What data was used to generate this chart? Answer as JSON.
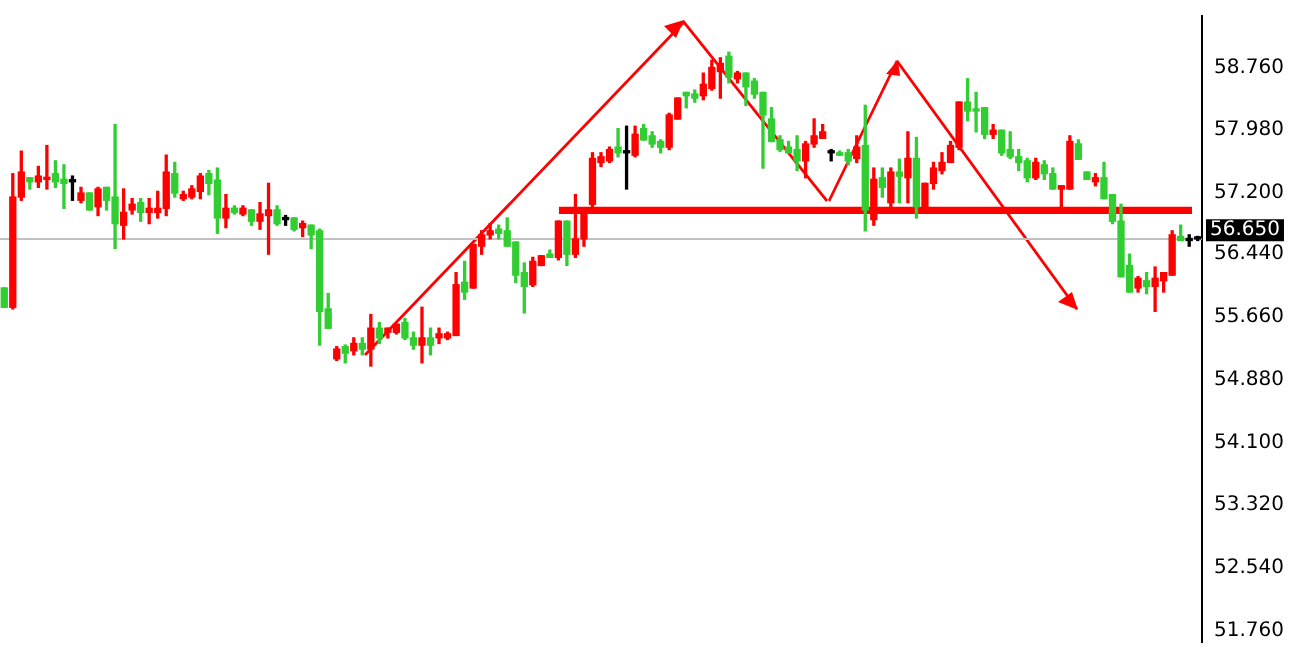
{
  "chart_data": {
    "type": "candlestick",
    "categories": [
      null,
      null,
      null,
      null,
      null,
      null,
      null,
      null,
      null,
      null,
      null,
      null,
      null,
      null,
      null,
      null,
      null,
      null,
      null,
      null,
      null,
      null,
      null,
      null,
      null,
      null,
      null,
      null,
      null,
      null,
      null,
      null,
      null,
      null,
      null,
      null,
      null,
      null,
      null,
      null,
      null,
      null,
      null,
      null,
      null,
      null,
      null,
      null,
      null,
      null,
      null,
      null,
      null,
      null,
      null,
      null,
      null,
      null,
      null,
      null,
      null,
      null,
      null,
      null,
      null,
      null,
      null,
      null,
      null,
      null,
      null,
      null,
      null,
      null,
      null,
      null,
      null,
      null,
      null,
      null,
      null,
      null,
      null,
      null,
      null,
      null,
      null,
      null,
      null,
      null,
      null,
      null,
      null,
      null,
      null,
      null,
      null,
      null,
      null,
      null,
      null,
      null,
      null,
      null,
      null,
      null,
      null,
      null,
      null,
      null,
      null,
      null,
      null,
      null,
      null,
      null,
      null,
      null,
      null,
      null,
      null,
      null,
      null,
      null,
      null,
      null,
      null,
      null,
      null,
      null,
      null,
      null,
      null,
      null,
      null,
      null,
      null,
      null,
      null,
      null,
      null
    ],
    "ohlc": [
      [
        55.78,
        56.02,
        55.78,
        56.02
      ],
      [
        57.15,
        57.44,
        55.76,
        55.78
      ],
      [
        57.46,
        57.72,
        57.11,
        57.15
      ],
      [
        57.34,
        57.39,
        57.25,
        57.39
      ],
      [
        57.41,
        57.53,
        57.27,
        57.34
      ],
      [
        57.39,
        57.79,
        57.25,
        57.37
      ],
      [
        57.34,
        57.6,
        57.27,
        57.44
      ],
      [
        57.32,
        57.55,
        57.01,
        57.37
      ],
      [
        57.34,
        57.41,
        57.11,
        57.34
      ],
      [
        57.2,
        57.27,
        57.08,
        57.11
      ],
      [
        56.99,
        57.2,
        56.99,
        57.2
      ],
      [
        57.25,
        57.27,
        56.92,
        57.03
      ],
      [
        57.11,
        57.27,
        56.99,
        57.27
      ],
      [
        56.82,
        58.05,
        56.51,
        57.15
      ],
      [
        56.96,
        57.25,
        56.63,
        56.8
      ],
      [
        57.06,
        57.13,
        56.94,
        56.99
      ],
      [
        56.96,
        57.13,
        56.85,
        57.08
      ],
      [
        57.01,
        57.13,
        56.82,
        56.96
      ],
      [
        57.01,
        57.22,
        56.89,
        56.96
      ],
      [
        57.46,
        57.67,
        56.92,
        57.01
      ],
      [
        57.2,
        57.58,
        57.15,
        57.44
      ],
      [
        57.18,
        57.22,
        57.11,
        57.13
      ],
      [
        57.25,
        57.29,
        57.13,
        57.15
      ],
      [
        57.41,
        57.44,
        57.13,
        57.22
      ],
      [
        57.32,
        57.48,
        57.18,
        57.44
      ],
      [
        56.89,
        57.51,
        56.7,
        57.36
      ],
      [
        57.01,
        57.18,
        56.77,
        56.89
      ],
      [
        56.96,
        57.04,
        56.94,
        57.01
      ],
      [
        57.01,
        57.04,
        56.92,
        56.94
      ],
      [
        56.85,
        56.99,
        56.8,
        56.99
      ],
      [
        56.94,
        57.08,
        56.75,
        56.85
      ],
      [
        56.99,
        57.32,
        56.44,
        56.92
      ],
      [
        56.82,
        57.04,
        56.8,
        56.99
      ],
      [
        56.87,
        56.92,
        56.8,
        56.87
      ],
      [
        56.75,
        56.89,
        56.73,
        56.89
      ],
      [
        56.82,
        56.85,
        56.66,
        56.77
      ],
      [
        56.68,
        56.8,
        56.51,
        56.8
      ],
      [
        55.73,
        56.75,
        55.31,
        56.73
      ],
      [
        55.52,
        55.95,
        55.52,
        55.76
      ],
      [
        55.26,
        55.29,
        55.12,
        55.14
      ],
      [
        55.21,
        55.31,
        55.09,
        55.29
      ],
      [
        55.33,
        55.4,
        55.19,
        55.24
      ],
      [
        55.26,
        55.4,
        55.19,
        55.33
      ],
      [
        55.52,
        55.69,
        55.05,
        55.26
      ],
      [
        55.4,
        55.59,
        55.33,
        55.52
      ],
      [
        55.52,
        55.52,
        55.4,
        55.47
      ],
      [
        55.57,
        55.57,
        55.45,
        55.47
      ],
      [
        55.4,
        55.64,
        55.38,
        55.59
      ],
      [
        55.31,
        55.47,
        55.26,
        55.4
      ],
      [
        55.4,
        55.78,
        55.09,
        55.31
      ],
      [
        55.31,
        55.52,
        55.19,
        55.4
      ],
      [
        55.45,
        55.52,
        55.33,
        55.4
      ],
      [
        55.45,
        55.47,
        55.38,
        55.4
      ],
      [
        56.06,
        56.21,
        55.43,
        55.43
      ],
      [
        55.97,
        56.35,
        55.88,
        56.09
      ],
      [
        56.56,
        56.56,
        56.02,
        56.02
      ],
      [
        56.68,
        56.73,
        56.44,
        56.54
      ],
      [
        56.73,
        56.82,
        56.63,
        56.68
      ],
      [
        56.7,
        56.8,
        56.63,
        56.75
      ],
      [
        56.54,
        56.89,
        56.54,
        56.73
      ],
      [
        56.18,
        56.59,
        56.09,
        56.59
      ],
      [
        56.04,
        56.33,
        55.71,
        56.21
      ],
      [
        56.35,
        56.4,
        56.04,
        56.06
      ],
      [
        56.42,
        56.42,
        56.3,
        56.3
      ],
      [
        56.4,
        56.49,
        56.4,
        56.44
      ],
      [
        56.85,
        56.85,
        56.37,
        56.4
      ],
      [
        56.44,
        56.85,
        56.3,
        56.85
      ],
      [
        56.63,
        57.18,
        56.4,
        56.44
      ],
      [
        56.94,
        56.94,
        56.54,
        56.63
      ],
      [
        57.63,
        57.7,
        57.01,
        57.06
      ],
      [
        57.65,
        57.7,
        57.53,
        57.58
      ],
      [
        57.74,
        57.77,
        57.58,
        57.6
      ],
      [
        57.7,
        58.0,
        57.65,
        57.77
      ],
      [
        57.7,
        58.03,
        57.25,
        57.7
      ],
      [
        57.93,
        58.03,
        57.65,
        57.67
      ],
      [
        57.86,
        58.05,
        57.86,
        58.0
      ],
      [
        57.81,
        57.96,
        57.77,
        57.91
      ],
      [
        57.77,
        57.86,
        57.7,
        57.84
      ],
      [
        58.17,
        58.19,
        57.74,
        57.77
      ],
      [
        58.38,
        58.38,
        58.12,
        58.12
      ],
      [
        58.41,
        58.45,
        58.26,
        58.45
      ],
      [
        58.38,
        58.48,
        58.33,
        58.43
      ],
      [
        58.55,
        58.69,
        58.36,
        58.41
      ],
      [
        58.76,
        58.85,
        58.48,
        58.5
      ],
      [
        58.81,
        58.88,
        58.38,
        58.71
      ],
      [
        58.64,
        58.95,
        58.57,
        58.9
      ],
      [
        58.69,
        58.71,
        58.57,
        58.62
      ],
      [
        58.52,
        58.69,
        58.29,
        58.69
      ],
      [
        58.43,
        58.62,
        58.38,
        58.59
      ],
      [
        58.17,
        58.45,
        57.51,
        58.45
      ],
      [
        57.84,
        58.26,
        57.84,
        58.12
      ],
      [
        57.74,
        57.91,
        57.72,
        57.86
      ],
      [
        57.7,
        57.84,
        57.7,
        57.77
      ],
      [
        57.6,
        57.91,
        57.48,
        57.74
      ],
      [
        57.81,
        57.84,
        57.39,
        57.6
      ],
      [
        57.91,
        58.12,
        57.77,
        57.81
      ],
      [
        57.96,
        58.05,
        57.88,
        57.88
      ],
      [
        57.7,
        57.74,
        57.6,
        57.7
      ],
      [
        57.67,
        57.72,
        57.67,
        57.7
      ],
      [
        57.6,
        57.74,
        57.55,
        57.7
      ],
      [
        57.77,
        57.91,
        57.58,
        57.63
      ],
      [
        56.99,
        58.29,
        56.73,
        57.79
      ],
      [
        57.37,
        57.51,
        56.8,
        56.87
      ],
      [
        57.27,
        57.51,
        57.15,
        57.39
      ],
      [
        57.46,
        57.51,
        57.01,
        57.08
      ],
      [
        57.41,
        57.62,
        57.08,
        57.46
      ],
      [
        57.63,
        57.96,
        57.08,
        57.39
      ],
      [
        57.03,
        57.89,
        56.89,
        57.63
      ],
      [
        57.32,
        57.32,
        56.96,
        57.03
      ],
      [
        57.51,
        57.58,
        57.25,
        57.32
      ],
      [
        57.58,
        57.7,
        57.44,
        57.48
      ],
      [
        57.79,
        57.84,
        57.58,
        57.58
      ],
      [
        58.33,
        58.33,
        57.74,
        57.77
      ],
      [
        58.22,
        58.62,
        58.1,
        58.33
      ],
      [
        58.22,
        58.45,
        57.96,
        58.24
      ],
      [
        57.93,
        58.26,
        57.88,
        58.26
      ],
      [
        57.98,
        58.05,
        57.88,
        57.93
      ],
      [
        57.7,
        57.98,
        57.67,
        57.98
      ],
      [
        57.65,
        57.96,
        57.63,
        57.74
      ],
      [
        57.58,
        57.74,
        57.48,
        57.65
      ],
      [
        57.39,
        57.63,
        57.34,
        57.6
      ],
      [
        57.58,
        57.63,
        57.37,
        57.39
      ],
      [
        57.44,
        57.6,
        57.37,
        57.55
      ],
      [
        57.25,
        57.51,
        57.25,
        57.44
      ],
      [
        57.29,
        57.29,
        57.03,
        57.25
      ],
      [
        57.84,
        57.91,
        57.25,
        57.25
      ],
      [
        57.62,
        57.86,
        57.62,
        57.81
      ],
      [
        57.37,
        57.46,
        57.37,
        57.46
      ],
      [
        57.39,
        57.44,
        57.29,
        57.34
      ],
      [
        57.13,
        57.58,
        57.13,
        57.39
      ],
      [
        56.85,
        57.18,
        56.82,
        57.18
      ],
      [
        56.16,
        57.06,
        56.16,
        56.85
      ],
      [
        55.97,
        56.44,
        55.97,
        56.3
      ],
      [
        56.14,
        56.16,
        55.97,
        56.02
      ],
      [
        56.04,
        56.21,
        55.95,
        56.11
      ],
      [
        56.14,
        56.28,
        55.73,
        56.04
      ],
      [
        56.21,
        56.21,
        55.97,
        56.11
      ],
      [
        56.68,
        56.73,
        56.18,
        56.18
      ],
      [
        56.61,
        56.8,
        56.61,
        56.66
      ],
      [
        56.61,
        56.68,
        56.54,
        56.61
      ],
      [
        56.63,
        56.66,
        56.61,
        56.65
      ]
    ],
    "colors": [
      "#32cd32",
      "#ff0000",
      "#ff0000",
      "#32cd32",
      "#ff0000",
      "#ff0000",
      "#32cd32",
      "#32cd32",
      "#000000",
      "#ff0000",
      "#32cd32",
      "#ff0000",
      "#32cd32",
      "#32cd32",
      "#ff0000",
      "#ff0000",
      "#32cd32",
      "#ff0000",
      "#ff0000",
      "#ff0000",
      "#32cd32",
      "#ff0000",
      "#ff0000",
      "#ff0000",
      "#32cd32",
      "#32cd32",
      "#ff0000",
      "#32cd32",
      "#ff0000",
      "#32cd32",
      "#ff0000",
      "#ff0000",
      "#32cd32",
      "#000000",
      "#32cd32",
      "#ff0000",
      "#32cd32",
      "#32cd32",
      "#32cd32",
      "#ff0000",
      "#32cd32",
      "#ff0000",
      "#32cd32",
      "#ff0000",
      "#32cd32",
      "#ff0000",
      "#ff0000",
      "#32cd32",
      "#32cd32",
      "#ff0000",
      "#32cd32",
      "#ff0000",
      "#ff0000",
      "#ff0000",
      "#32cd32",
      "#ff0000",
      "#ff0000",
      "#ff0000",
      "#32cd32",
      "#32cd32",
      "#32cd32",
      "#32cd32",
      "#ff0000",
      "#ff0000",
      "#32cd32",
      "#ff0000",
      "#32cd32",
      "#ff0000",
      "#ff0000",
      "#ff0000",
      "#ff0000",
      "#ff0000",
      "#32cd32",
      "#000000",
      "#ff0000",
      "#32cd32",
      "#32cd32",
      "#32cd32",
      "#ff0000",
      "#ff0000",
      "#32cd32",
      "#32cd32",
      "#ff0000",
      "#ff0000",
      "#ff0000",
      "#32cd32",
      "#ff0000",
      "#32cd32",
      "#32cd32",
      "#32cd32",
      "#32cd32",
      "#32cd32",
      "#32cd32",
      "#32cd32",
      "#ff0000",
      "#ff0000",
      "#ff0000",
      "#000000",
      "#32cd32",
      "#32cd32",
      "#ff0000",
      "#32cd32",
      "#ff0000",
      "#32cd32",
      "#ff0000",
      "#32cd32",
      "#ff0000",
      "#32cd32",
      "#ff0000",
      "#ff0000",
      "#ff0000",
      "#ff0000",
      "#ff0000",
      "#32cd32",
      "#32cd32",
      "#32cd32",
      "#ff0000",
      "#32cd32",
      "#32cd32",
      "#32cd32",
      "#32cd32",
      "#ff0000",
      "#32cd32",
      "#32cd32",
      "#ff0000",
      "#ff0000",
      "#32cd32",
      "#32cd32",
      "#ff0000",
      "#32cd32",
      "#32cd32",
      "#32cd32",
      "#32cd32",
      "#ff0000",
      "#32cd32",
      "#ff0000",
      "#ff0000",
      "#ff0000",
      "#32cd32",
      "#000000",
      "#000000"
    ],
    "ylim": [
      51.62,
      59.4
    ],
    "yticks": [
      {
        "value": 58.76,
        "label": "58.760"
      },
      {
        "value": 57.98,
        "label": "57.980"
      },
      {
        "value": 57.2,
        "label": "57.200"
      },
      {
        "value": 56.44,
        "label": "56.440"
      },
      {
        "value": 55.66,
        "label": "55.660"
      },
      {
        "value": 54.88,
        "label": "54.880"
      },
      {
        "value": 54.1,
        "label": "54.100"
      },
      {
        "value": 53.32,
        "label": "53.320"
      },
      {
        "value": 52.54,
        "label": "52.540"
      },
      {
        "value": 51.76,
        "label": "51.760"
      }
    ],
    "tick_labels": "y",
    "ref_lines": [
      {
        "axis": "y",
        "value": 56.65,
        "label": "56.650",
        "color": "#c0c0c0"
      }
    ],
    "bands": [
      {
        "axis": "y",
        "from": 56.94,
        "to": 57.03,
        "color": "#ff0000"
      }
    ]
  }
}
